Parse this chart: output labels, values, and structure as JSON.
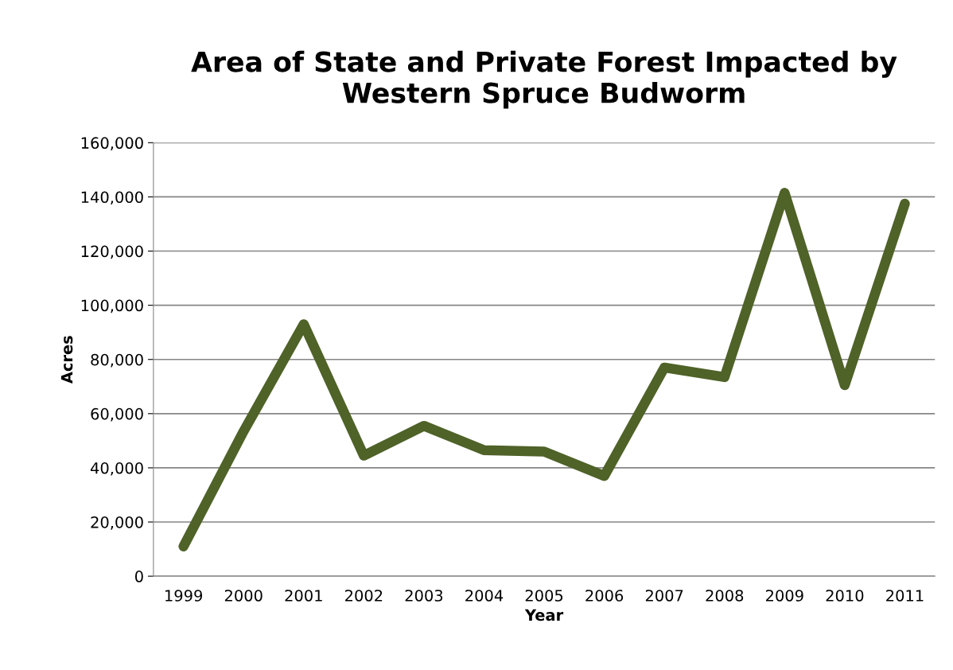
{
  "chart_data": {
    "type": "line",
    "title": "Area of State and Private Forest Impacted by\nWestern Spruce Budworm",
    "xlabel": "Year",
    "ylabel": "Acres",
    "categories": [
      "1999",
      "2000",
      "2001",
      "2002",
      "2003",
      "2004",
      "2005",
      "2006",
      "2007",
      "2008",
      "2009",
      "2010",
      "2011"
    ],
    "series": [
      {
        "color": "#4f6228",
        "values": [
          11000,
          53500,
          93000,
          44500,
          55500,
          46500,
          46000,
          37000,
          77000,
          73500,
          141500,
          70500,
          137500
        ]
      }
    ],
    "ylim": [
      0,
      160000
    ],
    "yticks": [
      {
        "value": 0,
        "label": "0"
      },
      {
        "value": 20000,
        "label": "20,000"
      },
      {
        "value": 40000,
        "label": "40,000"
      },
      {
        "value": 60000,
        "label": "60,000"
      },
      {
        "value": 80000,
        "label": "80,000"
      },
      {
        "value": 100000,
        "label": "100,000"
      },
      {
        "value": 120000,
        "label": "120,000"
      },
      {
        "value": 140000,
        "label": "140,000"
      },
      {
        "value": 160000,
        "label": "160,000"
      }
    ],
    "grid": "y",
    "legend": false,
    "line_style": "solid"
  }
}
